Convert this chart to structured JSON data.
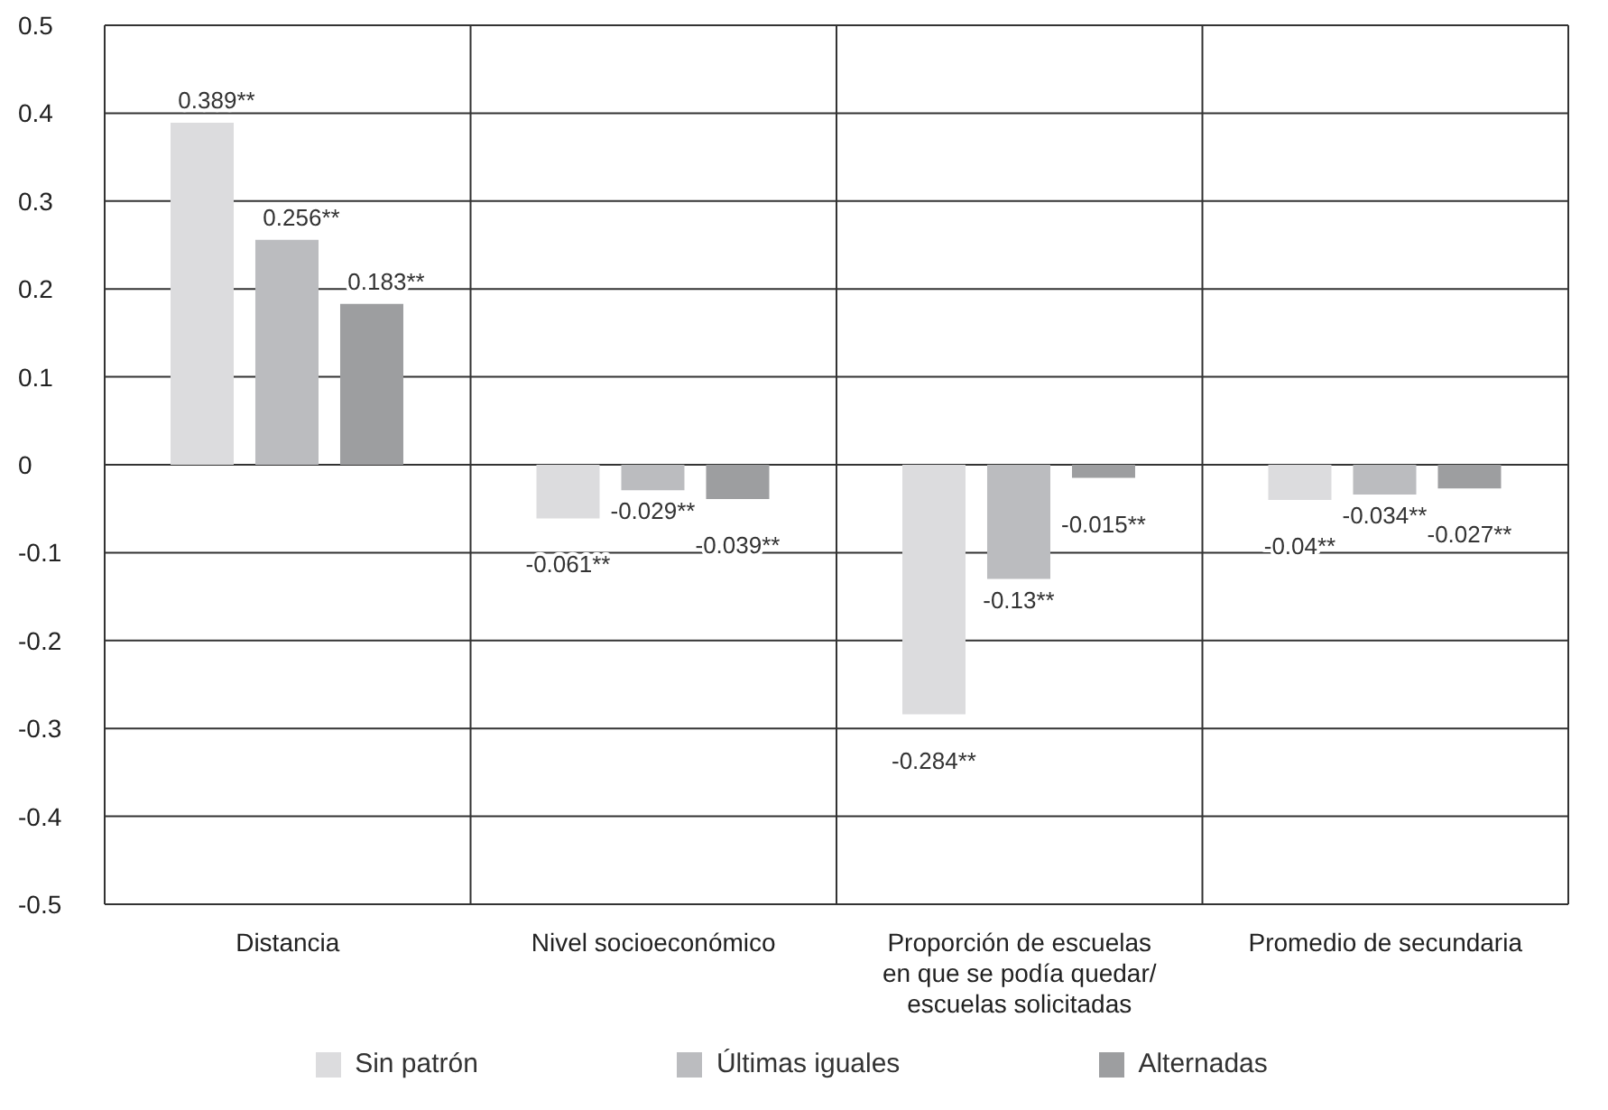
{
  "chart_data": {
    "type": "bar",
    "categories": [
      "Distancia",
      "Nivel socioeconómico",
      "Proporción de escuelas en que se podía quedar/ escuelas solicitadas",
      "Promedio de secundaria"
    ],
    "series": [
      {
        "name": "Sin patrón",
        "color": "#dcdcde",
        "values": [
          0.389,
          -0.061,
          -0.284,
          -0.04
        ],
        "value_labels": [
          "0.389**",
          "-0.061**",
          "-0.284**",
          "-0.04**"
        ]
      },
      {
        "name": "Últimas iguales",
        "color": "#bbbcbf",
        "values": [
          0.256,
          -0.029,
          -0.13,
          -0.034
        ],
        "value_labels": [
          "0.256**",
          "-0.029**",
          "-0.13**",
          "-0.034**"
        ]
      },
      {
        "name": "Alternadas",
        "color": "#9d9ea0",
        "values": [
          0.183,
          -0.039,
          -0.015,
          -0.027
        ],
        "value_labels": [
          "0.183**",
          "-0.039**",
          "-0.015**",
          "-0.027**"
        ]
      }
    ],
    "ylim": [
      -0.5,
      0.5
    ],
    "yticks": [
      -0.5,
      -0.4,
      -0.3,
      -0.2,
      -0.1,
      0,
      0.1,
      0.2,
      0.3,
      0.4,
      0.5
    ],
    "grid": true,
    "legend": "bottom"
  }
}
